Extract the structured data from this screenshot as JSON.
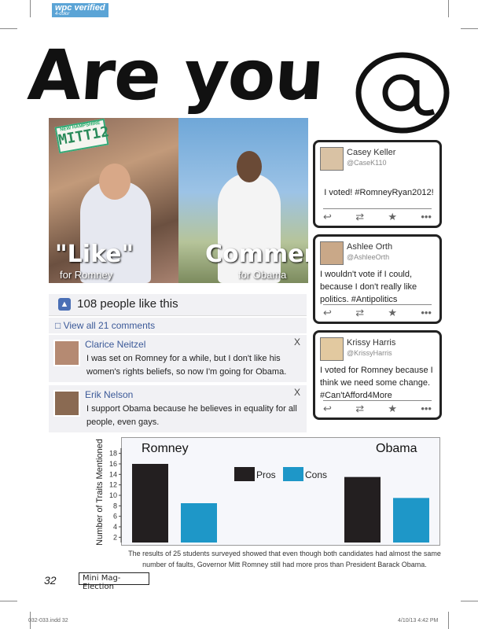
{
  "badge": {
    "title": "wpc verified",
    "subtitle": "4-color"
  },
  "headline": "Are you",
  "at_symbol": "@",
  "photo": {
    "plate_top": "NEW HAMPSHIRE",
    "plate_text": "MITT12",
    "left_word": "\"Like\"",
    "left_for": "for Romney",
    "right_word": "Comment",
    "right_for": "for Obama"
  },
  "facebook": {
    "likes": "108 people like this",
    "view_comments": "View all 21 comments",
    "comments": [
      {
        "name": "Clarice Neitzel",
        "text": "I was set on Romney for a while, but I don't like his women's rights beliefs, so now I'm going for Obama.",
        "close": "X"
      },
      {
        "name": "Erik Nelson",
        "text": "I support Obama because he believes in equality for all people, even gays.",
        "close": "X"
      }
    ]
  },
  "tweets": [
    {
      "name": "Casey Keller",
      "handle": "@CaseK110",
      "text": "I voted! #RomneyRyan2012!"
    },
    {
      "name": "Ashlee Orth",
      "handle": "@AshleeOrth",
      "text": "I wouldn't vote if I could, because I don't really like politics. #Antipolitics"
    },
    {
      "name": "Krissy Harris",
      "handle": "@KrissyHarris",
      "text": "I voted for Romney because I think we need some change. #Can'tAfford4More"
    }
  ],
  "tweet_icons": [
    "↩",
    "⇄",
    "★",
    "•••"
  ],
  "chart_data": {
    "type": "bar",
    "categories": [
      "Romney",
      "Obama"
    ],
    "series": [
      {
        "name": "Pros",
        "values": [
          16,
          13.5
        ],
        "color": "#231f20"
      },
      {
        "name": "Cons",
        "values": [
          8.5,
          9.5
        ],
        "color": "#1e97c8"
      }
    ],
    "ylabel": "Number of Traits Mentioned",
    "yticks": [
      2,
      4,
      6,
      8,
      10,
      12,
      14,
      16,
      18
    ],
    "ylim": [
      1,
      19
    ],
    "legend": "top-center"
  },
  "caption": "The results of 25 students surveyed showed that even though both candidates had almost the same number of faults, Governor Mitt Romney still had more pros than President Barack Obama.",
  "page_number": "32",
  "section_label": "Mini Mag-Election",
  "footer_left": "032-033.indd 32",
  "footer_right": "4/10/13 4:42 PM"
}
